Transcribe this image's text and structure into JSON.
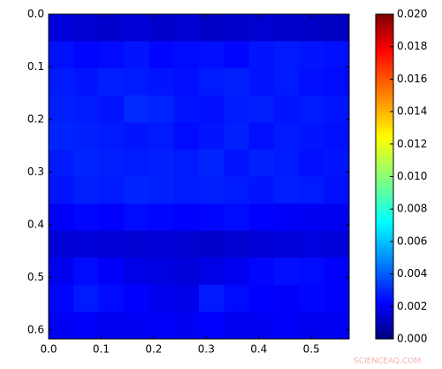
{
  "chart_data": {
    "type": "heatmap",
    "colormap": "jet",
    "y_inverted": true,
    "xlim": [
      0,
      0.572
    ],
    "ylim": [
      0,
      0.617
    ],
    "xticks": [
      {
        "value": 0,
        "label": "0.0"
      },
      0.1,
      0.2,
      0.3,
      0.4,
      0.5
    ],
    "yticks": [
      {
        "value": 0,
        "label": "0.0"
      },
      0.1,
      0.2,
      0.3,
      0.4,
      0.5,
      0.6
    ],
    "clim": [
      0,
      0.02
    ],
    "cticks": [
      {
        "value": 0,
        "label": "0.000"
      },
      0.002,
      0.004,
      0.006,
      0.008,
      {
        "value": 0.01,
        "label": "0.010"
      },
      0.012,
      0.014,
      0.016,
      0.018,
      {
        "value": 0.02,
        "label": "0.020"
      }
    ],
    "values": [
      [
        0.0018,
        0.0016,
        0.0015,
        0.0017,
        0.0015,
        0.0016,
        0.0014,
        0.0015,
        0.0016,
        0.0015,
        0.0014,
        0.0013
      ],
      [
        0.0028,
        0.0026,
        0.0027,
        0.0029,
        0.0026,
        0.0027,
        0.0028,
        0.0026,
        0.0029,
        0.003,
        0.0029,
        0.0028
      ],
      [
        0.003,
        0.0029,
        0.0031,
        0.003,
        0.0029,
        0.0028,
        0.003,
        0.0031,
        0.0029,
        0.003,
        0.0028,
        0.0027
      ],
      [
        0.0031,
        0.003,
        0.0029,
        0.0033,
        0.0032,
        0.0029,
        0.0028,
        0.003,
        0.0031,
        0.0029,
        0.003,
        0.0029
      ],
      [
        0.0032,
        0.0031,
        0.003,
        0.0029,
        0.003,
        0.0027,
        0.0029,
        0.0031,
        0.0028,
        0.003,
        0.0029,
        0.0028
      ],
      [
        0.003,
        0.0032,
        0.0031,
        0.003,
        0.0031,
        0.003,
        0.0032,
        0.0029,
        0.0031,
        0.003,
        0.0028,
        0.0029
      ],
      [
        0.0029,
        0.0031,
        0.003,
        0.0032,
        0.0031,
        0.003,
        0.0031,
        0.003,
        0.0029,
        0.0031,
        0.003,
        0.0028
      ],
      [
        0.0024,
        0.0026,
        0.0025,
        0.0027,
        0.0026,
        0.0025,
        0.0026,
        0.0027,
        0.0025,
        0.0024,
        0.0023,
        0.0022
      ],
      [
        0.0017,
        0.0018,
        0.0017,
        0.0016,
        0.0017,
        0.0016,
        0.0015,
        0.0016,
        0.0017,
        0.0018,
        0.0019,
        0.0018
      ],
      [
        0.0022,
        0.0027,
        0.0024,
        0.002,
        0.0019,
        0.0018,
        0.002,
        0.0022,
        0.0026,
        0.0028,
        0.0027,
        0.0025
      ],
      [
        0.0026,
        0.003,
        0.0027,
        0.0025,
        0.0022,
        0.0021,
        0.003,
        0.0027,
        0.0025,
        0.0024,
        0.0026,
        0.0025
      ],
      [
        0.0023,
        0.0024,
        0.0022,
        0.0023,
        0.0024,
        0.0023,
        0.0025,
        0.0022,
        0.0023,
        0.0024,
        0.0022,
        0.0023
      ]
    ],
    "watermark": "SCIENCEAQ.COM"
  }
}
